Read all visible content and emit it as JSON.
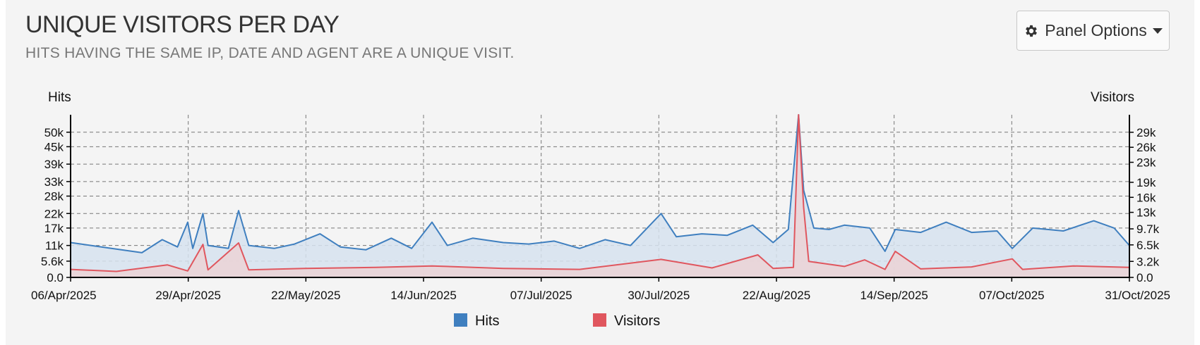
{
  "panel": {
    "title": "UNIQUE VISITORS PER DAY",
    "subtitle": "HITS HAVING THE SAME IP, DATE AND AGENT ARE A UNIQUE VISIT.",
    "options_label": "Panel Options",
    "options_icon": "gear-icon",
    "options_caret_icon": "caret-down-icon"
  },
  "chart_data": {
    "type": "line",
    "left_axis_label": "Hits",
    "right_axis_label": "Visitors",
    "x_tick_labels": [
      "06/Apr/2025",
      "29/Apr/2025",
      "22/May/2025",
      "14/Jun/2025",
      "07/Jul/2025",
      "30/Jul/2025",
      "22/Aug/2025",
      "14/Sep/2025",
      "07/Oct/2025",
      "31/Oct/2025"
    ],
    "y_left_tick_labels": [
      "0.0",
      "5.6k",
      "11k",
      "17k",
      "22k",
      "28k",
      "33k",
      "39k",
      "45k",
      "50k"
    ],
    "y_left_ticks": [
      0,
      5600,
      11000,
      17000,
      22000,
      28000,
      33000,
      39000,
      45000,
      50000
    ],
    "y_left_range": [
      0,
      56000
    ],
    "y_right_tick_labels": [
      "0.0",
      "3.2k",
      "6.5k",
      "9.7k",
      "13k",
      "16k",
      "19k",
      "23k",
      "26k",
      "29k"
    ],
    "y_right_ticks": [
      0,
      3200,
      6500,
      9700,
      13000,
      16000,
      19000,
      23000,
      26000,
      29000
    ],
    "y_right_range": [
      0,
      32500
    ],
    "grid": true,
    "legend_position": "bottom",
    "x_range": [
      "06/Apr/2025",
      "31/Oct/2025"
    ],
    "series": [
      {
        "name": "Hits",
        "axis": "left",
        "color": "#3f7fbf",
        "fill": "#d6e2ee",
        "points": [
          [
            "06/Apr/2025",
            12000
          ],
          [
            "10/Apr/2025",
            11000
          ],
          [
            "14/Apr/2025",
            10000
          ],
          [
            "20/Apr/2025",
            8500
          ],
          [
            "24/Apr/2025",
            13000
          ],
          [
            "27/Apr/2025",
            10500
          ],
          [
            "29/Apr/2025",
            19000
          ],
          [
            "30/Apr/2025",
            10000
          ],
          [
            "02/May/2025",
            22000
          ],
          [
            "03/May/2025",
            11000
          ],
          [
            "07/May/2025",
            10000
          ],
          [
            "09/May/2025",
            23000
          ],
          [
            "11/May/2025",
            11000
          ],
          [
            "16/May/2025",
            10000
          ],
          [
            "20/May/2025",
            11500
          ],
          [
            "25/May/2025",
            15000
          ],
          [
            "29/May/2025",
            10500
          ],
          [
            "03/Jun/2025",
            9500
          ],
          [
            "08/Jun/2025",
            13500
          ],
          [
            "12/Jun/2025",
            10000
          ],
          [
            "16/Jun/2025",
            19000
          ],
          [
            "19/Jun/2025",
            11000
          ],
          [
            "24/Jun/2025",
            13500
          ],
          [
            "30/Jun/2025",
            12000
          ],
          [
            "05/Jul/2025",
            11500
          ],
          [
            "10/Jul/2025",
            12500
          ],
          [
            "15/Jul/2025",
            10000
          ],
          [
            "20/Jul/2025",
            13000
          ],
          [
            "25/Jul/2025",
            11000
          ],
          [
            "31/Jul/2025",
            22000
          ],
          [
            "03/Aug/2025",
            14000
          ],
          [
            "08/Aug/2025",
            15000
          ],
          [
            "13/Aug/2025",
            14500
          ],
          [
            "18/Aug/2025",
            18000
          ],
          [
            "22/Aug/2025",
            12000
          ],
          [
            "25/Aug/2025",
            16500
          ],
          [
            "27/Aug/2025",
            56000
          ],
          [
            "28/Aug/2025",
            30000
          ],
          [
            "30/Aug/2025",
            17000
          ],
          [
            "02/Sep/2025",
            16500
          ],
          [
            "05/Sep/2025",
            18000
          ],
          [
            "10/Sep/2025",
            17000
          ],
          [
            "13/Sep/2025",
            9000
          ],
          [
            "15/Sep/2025",
            16500
          ],
          [
            "20/Sep/2025",
            15500
          ],
          [
            "25/Sep/2025",
            19000
          ],
          [
            "30/Sep/2025",
            15500
          ],
          [
            "05/Oct/2025",
            16000
          ],
          [
            "08/Oct/2025",
            10000
          ],
          [
            "12/Oct/2025",
            17000
          ],
          [
            "18/Oct/2025",
            16000
          ],
          [
            "24/Oct/2025",
            19500
          ],
          [
            "28/Oct/2025",
            17000
          ],
          [
            "31/Oct/2025",
            11000
          ]
        ]
      },
      {
        "name": "Visitors",
        "axis": "right",
        "color": "#e0565e",
        "fill": "#ebd3d6",
        "points": [
          [
            "06/Apr/2025",
            1600
          ],
          [
            "15/Apr/2025",
            1200
          ],
          [
            "25/Apr/2025",
            2500
          ],
          [
            "29/Apr/2025",
            1300
          ],
          [
            "02/May/2025",
            6600
          ],
          [
            "03/May/2025",
            1500
          ],
          [
            "09/May/2025",
            6900
          ],
          [
            "11/May/2025",
            1500
          ],
          [
            "22/May/2025",
            1800
          ],
          [
            "05/Jun/2025",
            2000
          ],
          [
            "16/Jun/2025",
            2300
          ],
          [
            "30/Jun/2025",
            1800
          ],
          [
            "15/Jul/2025",
            1600
          ],
          [
            "31/Jul/2025",
            3600
          ],
          [
            "10/Aug/2025",
            1900
          ],
          [
            "19/Aug/2025",
            4500
          ],
          [
            "22/Aug/2025",
            1800
          ],
          [
            "26/Aug/2025",
            2000
          ],
          [
            "27/Aug/2025",
            32500
          ],
          [
            "28/Aug/2025",
            14000
          ],
          [
            "29/Aug/2025",
            3200
          ],
          [
            "05/Sep/2025",
            2200
          ],
          [
            "09/Sep/2025",
            3500
          ],
          [
            "13/Sep/2025",
            1600
          ],
          [
            "15/Sep/2025",
            5200
          ],
          [
            "20/Sep/2025",
            1700
          ],
          [
            "30/Sep/2025",
            2100
          ],
          [
            "08/Oct/2025",
            3700
          ],
          [
            "10/Oct/2025",
            1600
          ],
          [
            "20/Oct/2025",
            2300
          ],
          [
            "31/Oct/2025",
            2000
          ]
        ]
      }
    ]
  }
}
